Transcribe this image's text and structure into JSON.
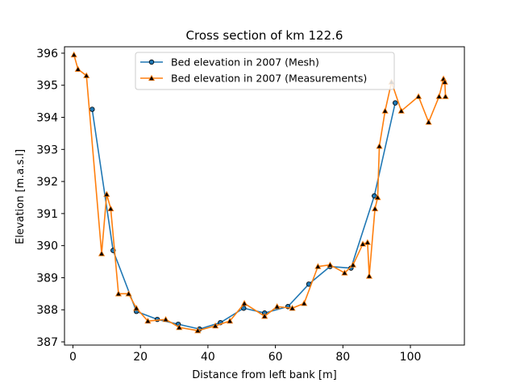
{
  "chart_data": {
    "type": "line",
    "title": "Cross section of km 122.6",
    "xlabel": "Distance from left bank [m]",
    "ylabel": "Elevation [m.a.s.l]",
    "xlim": [
      -2.5,
      116
    ],
    "ylim": [
      386.9,
      396.2
    ],
    "xticks": [
      0,
      20,
      40,
      60,
      80,
      100
    ],
    "yticks": [
      387,
      388,
      389,
      390,
      391,
      392,
      393,
      394,
      395,
      396
    ],
    "grid": false,
    "legend_position": "upper-center",
    "series": [
      {
        "name": "Bed elevation in 2007 (Mesh)",
        "color": "#1f77b4",
        "marker": "circle",
        "x": [
          5.7,
          11.9,
          18.8,
          25.0,
          31.2,
          37.5,
          43.7,
          50.6,
          56.8,
          63.7,
          69.9,
          76.2,
          82.4,
          89.3,
          95.5
        ],
        "y": [
          394.25,
          389.85,
          387.95,
          387.7,
          387.55,
          387.4,
          387.6,
          388.05,
          387.9,
          388.1,
          388.8,
          389.35,
          389.3,
          391.55,
          394.45
        ]
      },
      {
        "name": "Bed elevation in 2007 (Measurements)",
        "color": "#ff7f0e",
        "marker": "triangle",
        "x": [
          0.3,
          1.5,
          4.0,
          8.5,
          10.0,
          11.2,
          13.5,
          16.5,
          18.8,
          22.2,
          27.5,
          31.5,
          37.0,
          42.2,
          46.5,
          50.8,
          56.8,
          60.5,
          65.0,
          68.5,
          72.6,
          76.2,
          80.5,
          83.0,
          85.9,
          87.3,
          87.8,
          89.5,
          90.3,
          90.8,
          92.5,
          94.4,
          97.3,
          102.4,
          105.4,
          108.5,
          109.8,
          110.2,
          110.4
        ],
        "y": [
          395.95,
          395.5,
          395.3,
          389.75,
          391.6,
          391.15,
          388.5,
          388.5,
          388.05,
          387.65,
          387.7,
          387.45,
          387.35,
          387.5,
          387.65,
          388.2,
          387.8,
          388.1,
          388.05,
          388.2,
          389.35,
          389.4,
          389.15,
          389.4,
          390.05,
          390.1,
          389.05,
          391.15,
          391.5,
          393.1,
          394.2,
          395.1,
          394.2,
          394.65,
          393.85,
          394.65,
          395.2,
          395.1,
          394.65
        ]
      }
    ]
  }
}
